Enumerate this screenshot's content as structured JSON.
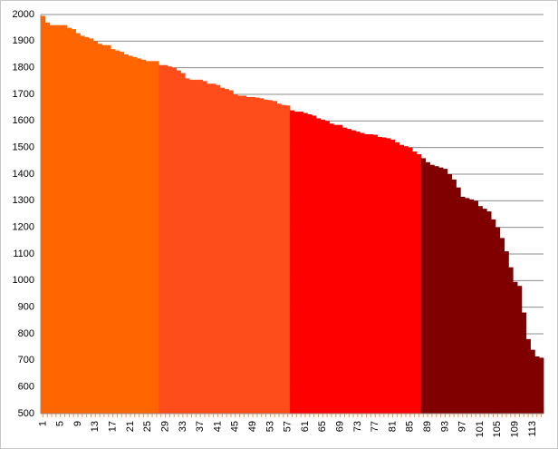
{
  "chart_data": {
    "type": "bar",
    "categories": [
      1,
      null,
      null,
      null,
      5,
      null,
      null,
      null,
      9,
      null,
      null,
      null,
      13,
      null,
      null,
      null,
      17,
      null,
      null,
      null,
      21,
      null,
      null,
      null,
      25,
      null,
      null,
      null,
      29,
      null,
      null,
      null,
      33,
      null,
      null,
      null,
      37,
      null,
      null,
      null,
      41,
      null,
      null,
      null,
      45,
      null,
      null,
      null,
      49,
      null,
      null,
      null,
      53,
      null,
      null,
      null,
      57,
      null,
      null,
      null,
      61,
      null,
      null,
      null,
      65,
      null,
      null,
      null,
      69,
      null,
      null,
      null,
      73,
      null,
      null,
      null,
      77,
      null,
      null,
      null,
      81,
      null,
      null,
      null,
      85,
      null,
      null,
      null,
      89,
      null,
      null,
      null,
      93,
      null,
      null,
      null,
      97,
      null,
      null,
      null,
      101,
      null,
      null,
      null,
      105,
      null,
      null,
      null,
      109,
      null,
      null,
      null,
      113,
      null,
      null
    ],
    "series": [
      {
        "color": "#ff6600",
        "values": [
          1995,
          1970,
          1960,
          1960,
          1960,
          1960,
          1950,
          1945,
          1930,
          1920,
          1915,
          1910,
          1900,
          1890,
          1885,
          1885,
          1870,
          1865,
          1860,
          1850,
          1845,
          1840,
          1835,
          1830,
          1825,
          1825,
          1825,
          null,
          null,
          null,
          null,
          null,
          null,
          null,
          null,
          null,
          null,
          null,
          null,
          null,
          null,
          null,
          null,
          null,
          null,
          null,
          null,
          null,
          null,
          null,
          null,
          null,
          null,
          null,
          null,
          null,
          null,
          null,
          null,
          null,
          null,
          null,
          null,
          null,
          null,
          null,
          null,
          null,
          null,
          null,
          null,
          null,
          null,
          null,
          null,
          null,
          null,
          null,
          null,
          null,
          null,
          null,
          null,
          null,
          null,
          null,
          null,
          null,
          null,
          null,
          null,
          null,
          null,
          null,
          null,
          null,
          null,
          null,
          null,
          null,
          null,
          null,
          null,
          null,
          null,
          null,
          null,
          null,
          null,
          null,
          null,
          null,
          null,
          null,
          null
        ]
      },
      {
        "color": "#ff4c1a",
        "values": [
          null,
          null,
          null,
          null,
          null,
          null,
          null,
          null,
          null,
          null,
          null,
          null,
          null,
          null,
          null,
          null,
          null,
          null,
          null,
          null,
          null,
          null,
          null,
          null,
          null,
          null,
          null,
          1810,
          1810,
          1805,
          1800,
          1790,
          1780,
          1760,
          1755,
          1755,
          1755,
          1750,
          1740,
          1740,
          1735,
          1725,
          1720,
          1715,
          1700,
          1695,
          1695,
          1690,
          1690,
          1688,
          1685,
          1680,
          1678,
          1675,
          1665,
          1660,
          1658,
          null,
          null,
          null,
          null,
          null,
          null,
          null,
          null,
          null,
          null,
          null,
          null,
          null,
          null,
          null,
          null,
          null,
          null,
          null,
          null,
          null,
          null,
          null,
          null,
          null,
          null,
          null,
          null,
          null,
          null,
          null,
          null,
          null,
          null,
          null,
          null,
          null,
          null,
          null,
          null,
          null,
          null,
          null,
          null,
          null,
          null,
          null,
          null,
          null,
          null,
          null,
          null,
          null,
          null,
          null,
          null,
          null,
          null
        ]
      },
      {
        "color": "#ff0000",
        "values": [
          null,
          null,
          null,
          null,
          null,
          null,
          null,
          null,
          null,
          null,
          null,
          null,
          null,
          null,
          null,
          null,
          null,
          null,
          null,
          null,
          null,
          null,
          null,
          null,
          null,
          null,
          null,
          null,
          null,
          null,
          null,
          null,
          null,
          null,
          null,
          null,
          null,
          null,
          null,
          null,
          null,
          null,
          null,
          null,
          null,
          null,
          null,
          null,
          null,
          null,
          null,
          null,
          null,
          null,
          null,
          null,
          null,
          1640,
          1635,
          1635,
          1630,
          1625,
          1620,
          1610,
          1605,
          1600,
          1590,
          1585,
          1585,
          1575,
          1570,
          1565,
          1560,
          1555,
          1550,
          1550,
          1548,
          1540,
          1538,
          1535,
          1530,
          1520,
          1510,
          1505,
          1500,
          1485,
          1475,
          null,
          null,
          null,
          null,
          null,
          null,
          null,
          null,
          null,
          null,
          null,
          null,
          null,
          null,
          null,
          null,
          null,
          null,
          null,
          null,
          null,
          null,
          null,
          null,
          null,
          null,
          null,
          null
        ]
      },
      {
        "color": "#800000",
        "values": [
          null,
          null,
          null,
          null,
          null,
          null,
          null,
          null,
          null,
          null,
          null,
          null,
          null,
          null,
          null,
          null,
          null,
          null,
          null,
          null,
          null,
          null,
          null,
          null,
          null,
          null,
          null,
          null,
          null,
          null,
          null,
          null,
          null,
          null,
          null,
          null,
          null,
          null,
          null,
          null,
          null,
          null,
          null,
          null,
          null,
          null,
          null,
          null,
          null,
          null,
          null,
          null,
          null,
          null,
          null,
          null,
          null,
          null,
          null,
          null,
          null,
          null,
          null,
          null,
          null,
          null,
          null,
          null,
          null,
          null,
          null,
          null,
          null,
          null,
          null,
          null,
          null,
          null,
          null,
          null,
          null,
          null,
          null,
          null,
          null,
          null,
          null,
          1460,
          1445,
          1435,
          1430,
          1425,
          1420,
          1400,
          1380,
          1350,
          1315,
          1310,
          1305,
          1300,
          1280,
          1270,
          1260,
          1230,
          1200,
          1160,
          1110,
          1050,
          995,
          980,
          880,
          780,
          740,
          715,
          710
        ]
      }
    ],
    "ylim": [
      500,
      2000
    ],
    "yticks": [
      500,
      600,
      700,
      800,
      900,
      1000,
      1100,
      1200,
      1300,
      1400,
      1500,
      1600,
      1700,
      1800,
      1900,
      2000
    ],
    "grid": true
  }
}
